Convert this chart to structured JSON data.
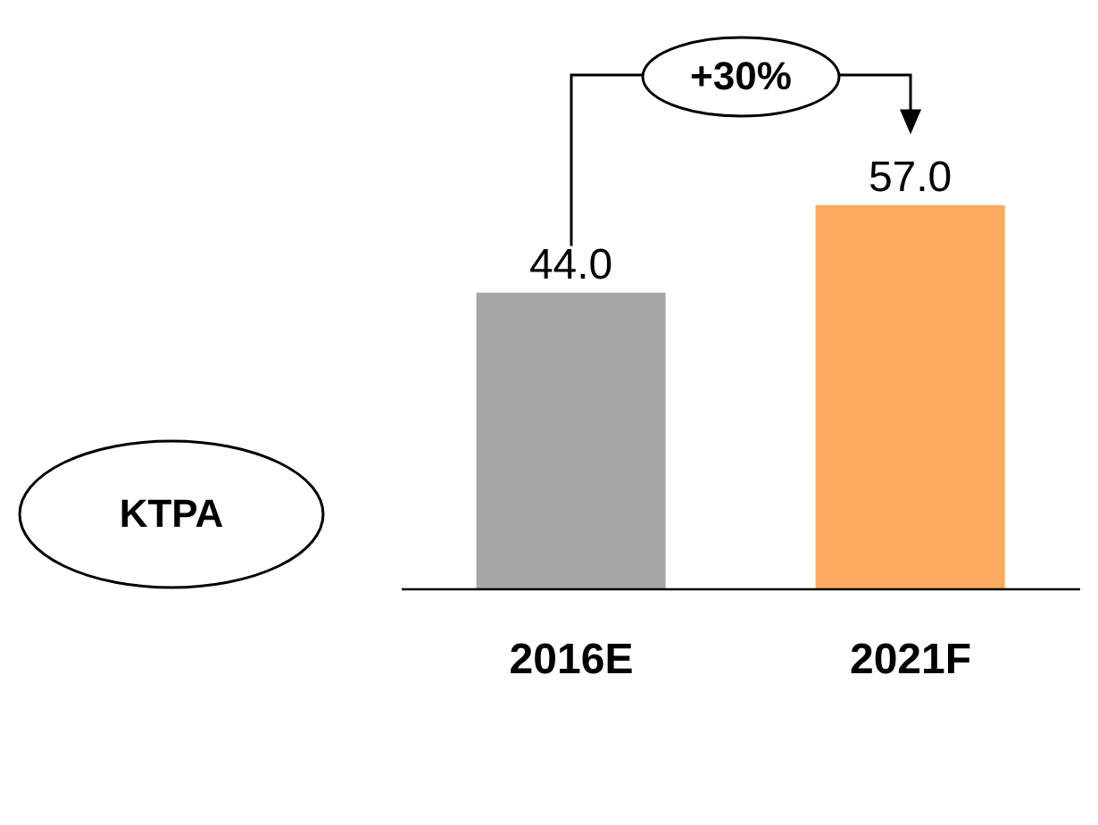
{
  "chart_data": {
    "type": "bar",
    "ylabel": "KTPA",
    "categories": [
      "2016E",
      "2021F"
    ],
    "values": [
      44,
      57
    ],
    "value_labels": [
      "44.0",
      "57.0"
    ],
    "colors": [
      "#a6a6a6",
      "#fbaa5f"
    ],
    "annotations": [
      "+30%"
    ]
  }
}
